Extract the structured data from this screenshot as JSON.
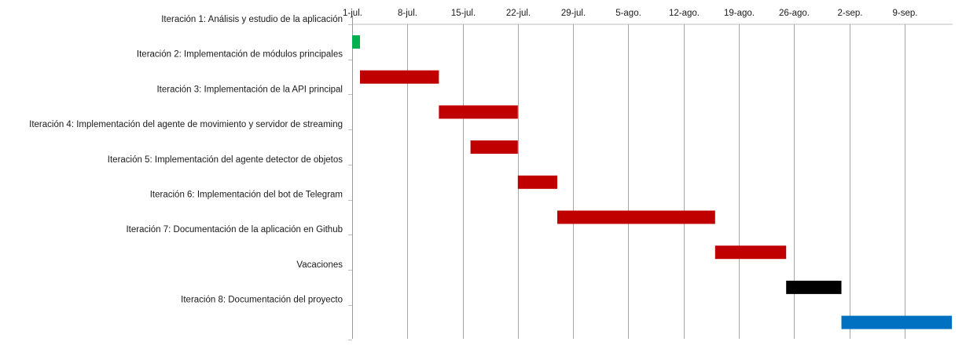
{
  "chart_data": {
    "type": "bar",
    "subtype": "gantt",
    "x_axis_position": "top",
    "grid": true,
    "legend": "none",
    "xlim": [
      "2019-07-01",
      "2019-09-12"
    ],
    "ticks": [
      {
        "date": "2019-07-01",
        "label": "1-jul."
      },
      {
        "date": "2019-07-08",
        "label": "8-jul."
      },
      {
        "date": "2019-07-15",
        "label": "15-jul."
      },
      {
        "date": "2019-07-22",
        "label": "22-jul."
      },
      {
        "date": "2019-07-29",
        "label": "29-jul."
      },
      {
        "date": "2019-08-05",
        "label": "5-ago."
      },
      {
        "date": "2019-08-12",
        "label": "12-ago."
      },
      {
        "date": "2019-08-19",
        "label": "19-ago."
      },
      {
        "date": "2019-08-26",
        "label": "26-ago."
      },
      {
        "date": "2019-09-02",
        "label": "2-sep."
      },
      {
        "date": "2019-09-09",
        "label": "9-sep."
      }
    ],
    "tasks": [
      {
        "name": "Iteración 1:  Análisis y estudio de la aplicación",
        "start": "2019-07-01",
        "end": "2019-07-02",
        "color": "#00b050"
      },
      {
        "name": "Iteración 2: Implementación de módulos principales",
        "start": "2019-07-02",
        "end": "2019-07-12",
        "color": "#c00000"
      },
      {
        "name": "Iteración 3: Implementación de la API principal",
        "start": "2019-07-12",
        "end": "2019-07-22",
        "color": "#c00000"
      },
      {
        "name": "Iteración 4: Implementación del agente de movimiento y servidor de streaming",
        "start": "2019-07-16",
        "end": "2019-07-22",
        "color": "#c00000"
      },
      {
        "name": "Iteración 5: Implementación del agente detector de objetos",
        "start": "2019-07-22",
        "end": "2019-07-27",
        "color": "#c00000"
      },
      {
        "name": "Iteración 6: Implementación del bot de Telegram",
        "start": "2019-07-27",
        "end": "2019-08-16",
        "color": "#c00000"
      },
      {
        "name": "Iteración 7: Documentación de la aplicación en Github",
        "start": "2019-08-16",
        "end": "2019-08-25",
        "color": "#c00000"
      },
      {
        "name": "Vacaciones",
        "start": "2019-08-25",
        "end": "2019-09-01",
        "color": "#000000"
      },
      {
        "name": "Iteración 8: Documentación del proyecto",
        "start": "2019-09-01",
        "end": "2019-09-15",
        "color": "#0070c0"
      }
    ]
  }
}
